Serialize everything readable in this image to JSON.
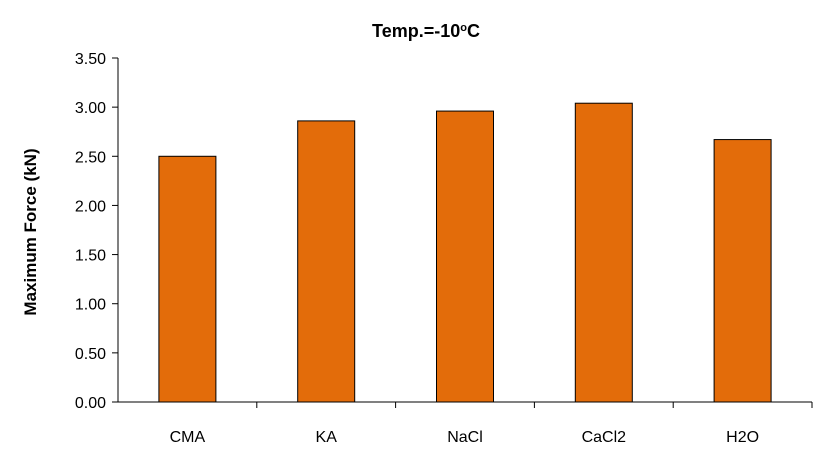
{
  "chart_data": {
    "type": "bar",
    "title": {
      "main": "Temp.=-10",
      "superscript": "o",
      "suffix": "C"
    },
    "ylabel": "Maximum Force (kN)",
    "xlabel": "",
    "categories": [
      "CMA",
      "KA",
      "NaCl",
      "CaCl2",
      "H2O"
    ],
    "values": [
      2.5,
      2.86,
      2.96,
      3.04,
      2.67
    ],
    "ylim": [
      0,
      3.5
    ],
    "yticks": [
      "0.00",
      "0.50",
      "1.00",
      "1.50",
      "2.00",
      "2.50",
      "3.00",
      "3.50"
    ],
    "grid": false,
    "legend": "none",
    "bar_color": "#E36C0A"
  }
}
